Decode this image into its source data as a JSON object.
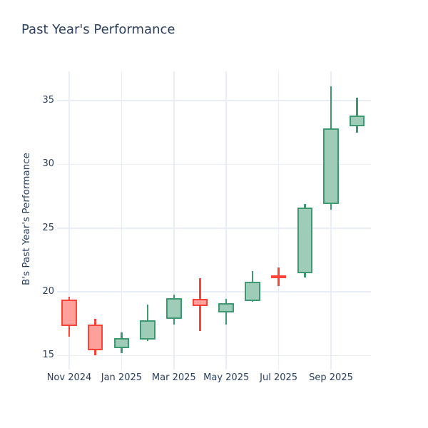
{
  "chart_data": {
    "type": "candlestick",
    "title": "Past Year's Performance",
    "xlabel": "",
    "ylabel": "B's Past Year's Performance",
    "categories": [
      "Nov 2024",
      "Dec 2024",
      "Jan 2025",
      "Feb 2025",
      "Mar 2025",
      "Apr 2025",
      "May 2025",
      "Jun 2025",
      "Jul 2025",
      "Aug 2025",
      "Sep 2025",
      "Oct 2025"
    ],
    "open": [
      19.4,
      17.4,
      15.6,
      16.25,
      17.9,
      19.45,
      18.4,
      19.25,
      21.3,
      21.45,
      26.9,
      33.0
    ],
    "high": [
      19.6,
      17.9,
      16.8,
      19.0,
      19.8,
      21.05,
      19.45,
      21.6,
      21.9,
      26.9,
      36.1,
      35.25
    ],
    "low": [
      16.45,
      15.0,
      15.2,
      16.15,
      17.4,
      16.9,
      17.4,
      19.2,
      20.45,
      21.1,
      26.45,
      32.5
    ],
    "close": [
      17.3,
      15.4,
      16.35,
      17.75,
      19.5,
      18.9,
      19.1,
      20.8,
      21.05,
      26.6,
      32.8,
      33.85
    ],
    "y_ticks": [
      15,
      20,
      25,
      30,
      35
    ],
    "x_tick_labels": [
      "Nov 2024",
      "Jan 2025",
      "Mar 2025",
      "May 2025",
      "Jul 2025",
      "Sep 2025"
    ],
    "x_tick_indices": [
      0,
      2,
      4,
      6,
      8,
      10
    ],
    "ylim": [
      13.9,
      37.3
    ],
    "grid": true,
    "legend_position": "none",
    "colors": {
      "increasing_line": "#3D9970",
      "increasing_fill": "#9ECCB8",
      "decreasing_line": "#FF4136",
      "decreasing_fill": "#FFA09B",
      "gridline": "#E9EEF6",
      "text": "#2A3F5F",
      "background": "#FFFFFF"
    }
  }
}
